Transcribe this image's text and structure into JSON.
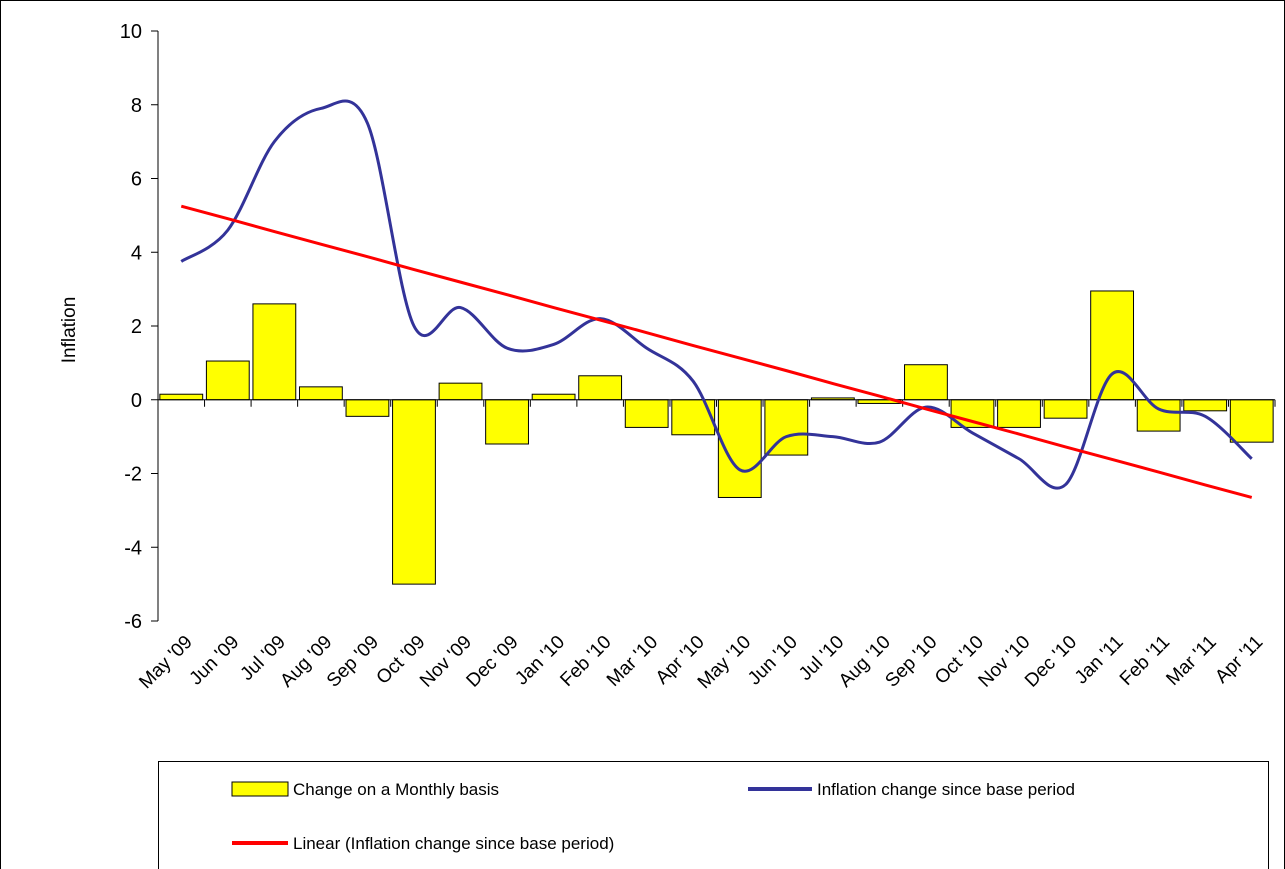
{
  "chart_data": {
    "type": "bar-line",
    "y_label": "Inflation",
    "categories": [
      "May '09",
      "Jun '09",
      "Jul '09",
      "Aug '09",
      "Sep '09",
      "Oct '09",
      "Nov '09",
      "Dec '09",
      "Jan '10",
      "Feb '10",
      "Mar '10",
      "Apr '10",
      "May '10",
      "Jun '10",
      "Jul '10",
      "Aug '10",
      "Sep '10",
      "Oct '10",
      "Nov '10",
      "Dec '10",
      "Jan '11",
      "Feb '11",
      "Mar '11",
      "Apr '11"
    ],
    "series": [
      {
        "name": "Change on a Monthly basis",
        "type": "bar",
        "color": "#ffff00",
        "values": [
          0.15,
          1.05,
          2.6,
          0.35,
          -0.45,
          -5.0,
          0.45,
          -1.2,
          0.15,
          0.65,
          -0.75,
          -0.95,
          -2.65,
          -1.5,
          0.05,
          -0.1,
          0.95,
          -0.75,
          -0.75,
          -0.5,
          2.95,
          -0.85,
          -0.3,
          -1.15
        ]
      },
      {
        "name": "Inflation change since base period",
        "type": "line",
        "color": "#333399",
        "values": [
          3.75,
          4.6,
          7.0,
          7.9,
          7.5,
          2.0,
          2.5,
          1.4,
          1.5,
          2.2,
          1.4,
          0.5,
          -1.9,
          -1.0,
          -1.0,
          -1.15,
          -0.2,
          -0.9,
          -1.6,
          -2.3,
          0.7,
          -0.25,
          -0.45,
          -1.6
        ]
      },
      {
        "name": "Linear (Inflation change since base period)",
        "type": "trend",
        "color": "#ff0000",
        "values": [
          5.25,
          4.91,
          4.56,
          4.22,
          3.88,
          3.53,
          3.19,
          2.85,
          2.5,
          2.16,
          1.82,
          1.47,
          1.13,
          0.79,
          0.44,
          0.1,
          -0.25,
          -0.59,
          -0.93,
          -1.28,
          -1.62,
          -1.96,
          -2.31,
          -2.65
        ]
      }
    ],
    "ylim": [
      -6,
      10
    ],
    "yticks": [
      -6,
      -4,
      -2,
      0,
      2,
      4,
      6,
      8,
      10
    ]
  }
}
